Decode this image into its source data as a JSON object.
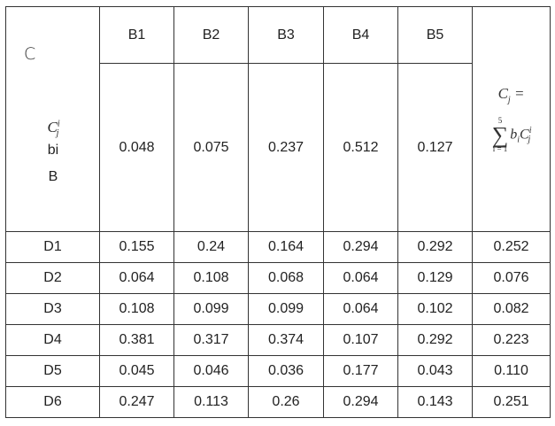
{
  "corner": {
    "top_label": "C",
    "line1": "bi",
    "line2": "B"
  },
  "columns": [
    "B1",
    "B2",
    "B3",
    "B4",
    "B5"
  ],
  "weights": [
    "0.048",
    "0.075",
    "0.237",
    "0.512",
    "0.127"
  ],
  "formula": {
    "sum_upper": "5",
    "sum_lower": "i = 1"
  },
  "rows": [
    {
      "label": "D1",
      "values": [
        "0.155",
        "0.24",
        "0.164",
        "0.294",
        "0.292"
      ],
      "result": "0.252"
    },
    {
      "label": "D2",
      "values": [
        "0.064",
        "0.108",
        "0.068",
        "0.064",
        "0.129"
      ],
      "result": "0.076"
    },
    {
      "label": "D3",
      "values": [
        "0.108",
        "0.099",
        "0.099",
        "0.064",
        "0.102"
      ],
      "result": "0.082"
    },
    {
      "label": "D4",
      "values": [
        "0.381",
        "0.317",
        "0.374",
        "0.107",
        "0.292"
      ],
      "result": "0.223"
    },
    {
      "label": "D5",
      "values": [
        "0.045",
        "0.046",
        "0.036",
        "0.177",
        "0.043"
      ],
      "result": "0.110"
    },
    {
      "label": "D6",
      "values": [
        "0.247",
        "0.113",
        "0.26",
        "0.294",
        "0.143"
      ],
      "result": "0.251"
    }
  ]
}
